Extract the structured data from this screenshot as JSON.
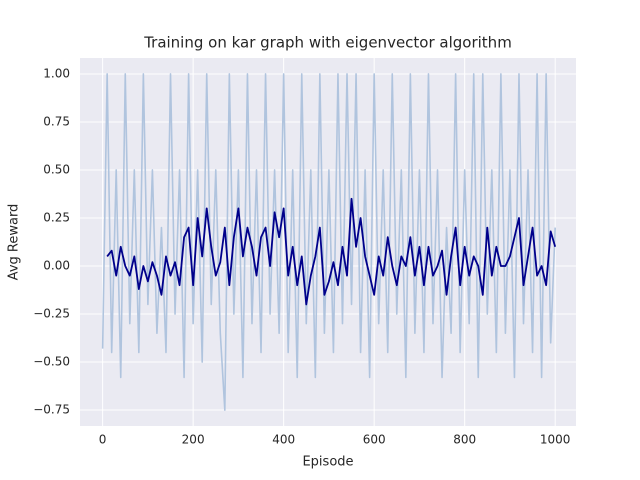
{
  "chart_data": {
    "type": "line",
    "title": "Training on kar graph with eigenvector algorithm",
    "xlabel": "Episode",
    "ylabel": "Avg Reward",
    "x": [
      0,
      10,
      20,
      30,
      40,
      50,
      60,
      70,
      80,
      90,
      100,
      110,
      120,
      130,
      140,
      150,
      160,
      170,
      180,
      190,
      200,
      210,
      220,
      230,
      240,
      250,
      260,
      270,
      280,
      290,
      300,
      310,
      320,
      330,
      340,
      350,
      360,
      370,
      380,
      390,
      400,
      410,
      420,
      430,
      440,
      450,
      460,
      470,
      480,
      490,
      500,
      510,
      520,
      530,
      540,
      550,
      560,
      570,
      580,
      590,
      600,
      610,
      620,
      630,
      640,
      650,
      660,
      670,
      680,
      690,
      700,
      710,
      720,
      730,
      740,
      750,
      760,
      770,
      780,
      790,
      800,
      810,
      820,
      830,
      840,
      850,
      860,
      870,
      880,
      890,
      900,
      910,
      920,
      930,
      940,
      950,
      960,
      970,
      980,
      990,
      1000
    ],
    "series": [
      {
        "color": "#b0c4de",
        "values": [
          -0.43,
          1.0,
          -0.45,
          0.5,
          -0.58,
          1.0,
          -0.3,
          0.5,
          -0.45,
          1.0,
          -0.2,
          0.5,
          -0.35,
          0.2,
          -0.45,
          1.0,
          -0.25,
          0.5,
          -0.58,
          1.0,
          -0.3,
          0.5,
          -0.5,
          1.0,
          -0.2,
          0.5,
          -0.35,
          -0.75,
          1.0,
          -0.25,
          0.5,
          -0.58,
          1.0,
          -0.3,
          0.5,
          -0.45,
          1.0,
          -0.25,
          0.5,
          -0.35,
          1.0,
          -0.45,
          0.5,
          -0.58,
          1.0,
          -0.3,
          0.5,
          -0.58,
          1.0,
          -0.35,
          0.5,
          -0.45,
          1.0,
          -0.3,
          1.0,
          -0.2,
          1.0,
          -0.45,
          0.5,
          -0.58,
          1.0,
          -0.3,
          0.5,
          -0.45,
          1.0,
          -0.25,
          0.5,
          -0.58,
          1.0,
          -0.35,
          0.5,
          -0.45,
          1.0,
          -0.3,
          0.5,
          -0.58,
          0.2,
          -0.35,
          1.0,
          -0.45,
          0.5,
          -0.3,
          1.0,
          -0.58,
          1.0,
          -0.25,
          0.5,
          -0.45,
          1.0,
          -0.35,
          0.5,
          -0.58,
          1.0,
          -0.3,
          0.5,
          -0.45,
          1.0,
          -0.58,
          1.0,
          -0.4,
          0.2
        ]
      },
      {
        "color": "#00008b",
        "values": [
          null,
          0.05,
          0.08,
          -0.05,
          0.1,
          0.0,
          -0.05,
          0.05,
          -0.12,
          0.0,
          -0.08,
          0.02,
          -0.05,
          -0.15,
          0.05,
          -0.05,
          0.02,
          -0.1,
          0.15,
          0.2,
          -0.1,
          0.25,
          0.05,
          0.3,
          0.1,
          -0.05,
          0.02,
          0.2,
          -0.1,
          0.15,
          0.3,
          0.05,
          0.2,
          0.1,
          -0.05,
          0.15,
          0.2,
          0.0,
          0.28,
          0.15,
          0.3,
          -0.05,
          0.1,
          -0.1,
          0.05,
          -0.2,
          -0.05,
          0.05,
          0.2,
          -0.15,
          -0.08,
          0.02,
          -0.1,
          0.1,
          -0.05,
          0.35,
          0.1,
          0.25,
          0.05,
          -0.05,
          -0.15,
          0.05,
          -0.05,
          0.15,
          0.0,
          -0.1,
          0.05,
          0.0,
          0.15,
          -0.05,
          0.1,
          -0.1,
          0.1,
          -0.05,
          0.0,
          0.08,
          -0.15,
          0.05,
          0.2,
          -0.1,
          0.1,
          -0.05,
          0.05,
          0.0,
          -0.15,
          0.2,
          -0.05,
          0.1,
          0.0,
          0.0,
          0.05,
          0.15,
          0.25,
          -0.1,
          0.05,
          0.2,
          -0.05,
          0.0,
          -0.1,
          0.18,
          0.1
        ]
      }
    ],
    "xlim": [
      -50,
      1046
    ],
    "ylim": [
      -0.833,
      1.083
    ],
    "xticks": [
      0,
      200,
      400,
      600,
      800,
      1000
    ],
    "yticks": [
      {
        "value": -0.75,
        "label": "−0.75"
      },
      {
        "value": -0.5,
        "label": "−0.50"
      },
      {
        "value": -0.25,
        "label": "−0.25"
      },
      {
        "value": 0,
        "label": "0.00"
      },
      {
        "value": 0.25,
        "label": "0.25"
      },
      {
        "value": 0.5,
        "label": "0.50"
      },
      {
        "value": 0.75,
        "label": "0.75"
      },
      {
        "value": 1.0,
        "label": "1.00"
      }
    ],
    "grid": true
  }
}
